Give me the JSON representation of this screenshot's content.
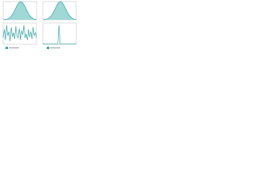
{
  "chart_data": [
    {
      "type": "area",
      "color": "#3aa6a6",
      "fill": "#9fd8d6",
      "ylim": [
        0,
        1
      ],
      "values": [
        0.0,
        0.01,
        0.03,
        0.07,
        0.14,
        0.25,
        0.41,
        0.61,
        0.8,
        0.95,
        1.0,
        0.95,
        0.8,
        0.61,
        0.41,
        0.25,
        0.14,
        0.07,
        0.03,
        0.01
      ]
    },
    {
      "type": "area",
      "color": "#3aa6a6",
      "fill": "#9fd8d6",
      "ylim": [
        0,
        1
      ],
      "values": [
        0.0,
        0.01,
        0.03,
        0.07,
        0.14,
        0.25,
        0.41,
        0.61,
        0.8,
        0.95,
        1.0,
        0.95,
        0.8,
        0.61,
        0.41,
        0.25,
        0.14,
        0.07,
        0.03,
        0.01
      ]
    },
    {
      "type": "line",
      "color": "#3aa6a6",
      "ylim": [
        0,
        1
      ],
      "values": [
        0.3,
        0.7,
        0.2,
        0.9,
        0.4,
        0.6,
        0.15,
        0.8,
        0.35,
        0.55,
        0.25,
        0.85,
        0.4,
        0.3,
        0.75,
        0.2,
        0.65,
        0.45,
        0.9,
        0.3,
        0.5,
        0.2,
        0.7,
        0.35,
        0.6,
        0.25,
        0.8,
        0.4,
        0.55,
        0.3
      ]
    },
    {
      "type": "line",
      "color": "#3aa6a6",
      "ylim": [
        0,
        1
      ],
      "values": [
        0.02,
        0.02,
        0.02,
        0.02,
        0.02,
        0.02,
        0.02,
        0.02,
        0.02,
        0.02,
        0.02,
        0.02,
        0.02,
        0.02,
        0.9,
        0.02,
        0.02,
        0.02,
        0.02,
        0.02,
        0.02,
        0.02,
        0.02,
        0.02,
        0.02,
        0.02,
        0.02,
        0.02,
        0.02,
        0.02
      ]
    }
  ]
}
